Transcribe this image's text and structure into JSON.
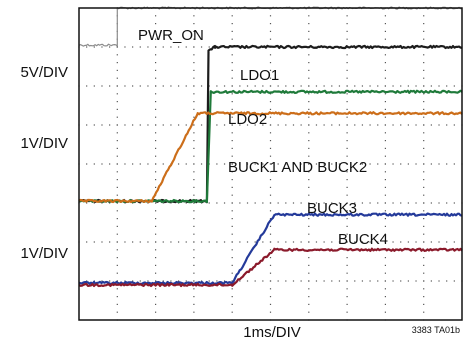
{
  "chart_data": {
    "type": "line",
    "title": "",
    "xlabel": "1ms/DIV",
    "ylabel": "",
    "figure_id": "3383 TA01b",
    "x_divisions": 10,
    "y_divisions": 8,
    "x_unit": "ms",
    "x_per_div": 1,
    "channel_scales": [
      {
        "label": "5V/DIV"
      },
      {
        "label": "1V/DIV"
      },
      {
        "label": "1V/DIV"
      }
    ],
    "series": [
      {
        "name": "PWR_ON",
        "color": "#8c8c8c",
        "x": [
          0,
          1.0,
          1.0,
          10
        ],
        "y": [
          6.05,
          6.05,
          7.0,
          7.0
        ]
      },
      {
        "name": "LDO1",
        "color": "#1c1c1c",
        "x": [
          0,
          3.34,
          3.38,
          3.55,
          10
        ],
        "y": [
          2.05,
          2.05,
          5.9,
          6.0,
          6.0
        ]
      },
      {
        "name": "LDO2",
        "color": "#1f7a3a",
        "x": [
          0,
          3.34,
          3.44,
          10
        ],
        "y": [
          2.05,
          2.05,
          4.85,
          4.85
        ]
      },
      {
        "name": "BUCK1 AND BUCK2",
        "color": "#cc6e1a",
        "x": [
          0,
          1.9,
          3.1,
          10
        ],
        "y": [
          2.05,
          2.05,
          4.3,
          4.3
        ]
      },
      {
        "name": "BUCK3",
        "color": "#243a9a",
        "x": [
          0,
          4.0,
          5.1,
          10
        ],
        "y": [
          -0.05,
          -0.05,
          1.7,
          1.7
        ]
      },
      {
        "name": "BUCK4",
        "color": "#8b1a2b",
        "x": [
          0,
          4.0,
          5.1,
          10
        ],
        "y": [
          -0.1,
          -0.1,
          0.8,
          0.8
        ]
      }
    ],
    "xlim": [
      0,
      10
    ],
    "ylim": [
      -1,
      7
    ],
    "grid": true
  }
}
